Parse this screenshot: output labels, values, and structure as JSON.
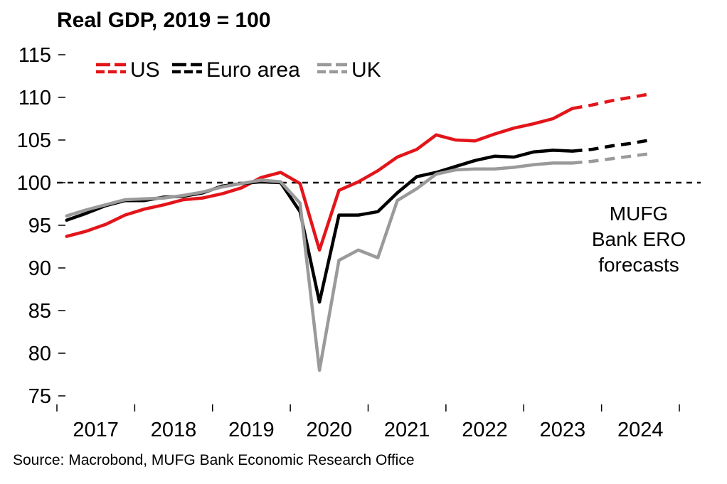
{
  "chart_data": {
    "type": "line",
    "title": "Real GDP, 2019 = 100",
    "xlabel": "",
    "ylabel": "",
    "ylim": [
      75,
      115
    ],
    "yticks": [
      75,
      80,
      85,
      90,
      95,
      100,
      105,
      110,
      115
    ],
    "x_categories": [
      "2017",
      "2018",
      "2019",
      "2020",
      "2021",
      "2022",
      "2023",
      "2024"
    ],
    "quarters_per_year": 4,
    "reference_line": {
      "y": 100,
      "style": "dashed",
      "color": "#000000"
    },
    "legend_position": "top-left",
    "annotation": [
      "MUFG",
      "Bank ERO",
      "forecasts"
    ],
    "forecast_style": "dashed",
    "series": [
      {
        "name": "US",
        "color": "#e3151a",
        "actual": [
          93.7,
          94.3,
          95.1,
          96.2,
          96.9,
          97.4,
          98.0,
          98.2,
          98.7,
          99.4,
          100.6,
          101.2,
          99.9,
          92.1,
          99.1,
          100.1,
          101.4,
          103.0,
          103.9,
          105.6,
          105.0,
          104.9,
          105.7,
          106.4,
          106.9,
          107.5,
          108.7
        ],
        "forecast": [
          108.7,
          109.1,
          109.6,
          110.0,
          110.4
        ]
      },
      {
        "name": "Euro area",
        "color": "#000000",
        "actual": [
          95.6,
          96.4,
          97.3,
          97.9,
          97.9,
          98.3,
          98.4,
          98.8,
          99.6,
          99.9,
          100.1,
          100.0,
          96.6,
          86.0,
          96.2,
          96.2,
          96.6,
          98.8,
          100.7,
          101.2,
          101.9,
          102.6,
          103.1,
          103.0,
          103.6,
          103.8,
          103.7
        ],
        "forecast": [
          103.7,
          103.9,
          104.3,
          104.6,
          105.0
        ]
      },
      {
        "name": "UK",
        "color": "#9a9a9a",
        "actual": [
          96.1,
          96.8,
          97.4,
          98.0,
          98.1,
          98.2,
          98.5,
          98.9,
          99.5,
          99.9,
          100.3,
          100.1,
          97.6,
          78.0,
          90.9,
          92.1,
          91.2,
          97.9,
          99.3,
          101.0,
          101.5,
          101.6,
          101.6,
          101.8,
          102.1,
          102.3,
          102.3
        ],
        "forecast": [
          102.3,
          102.5,
          102.8,
          103.1,
          103.4
        ]
      }
    ]
  },
  "source": "Source: Macrobond, MUFG Bank Economic Research Office"
}
